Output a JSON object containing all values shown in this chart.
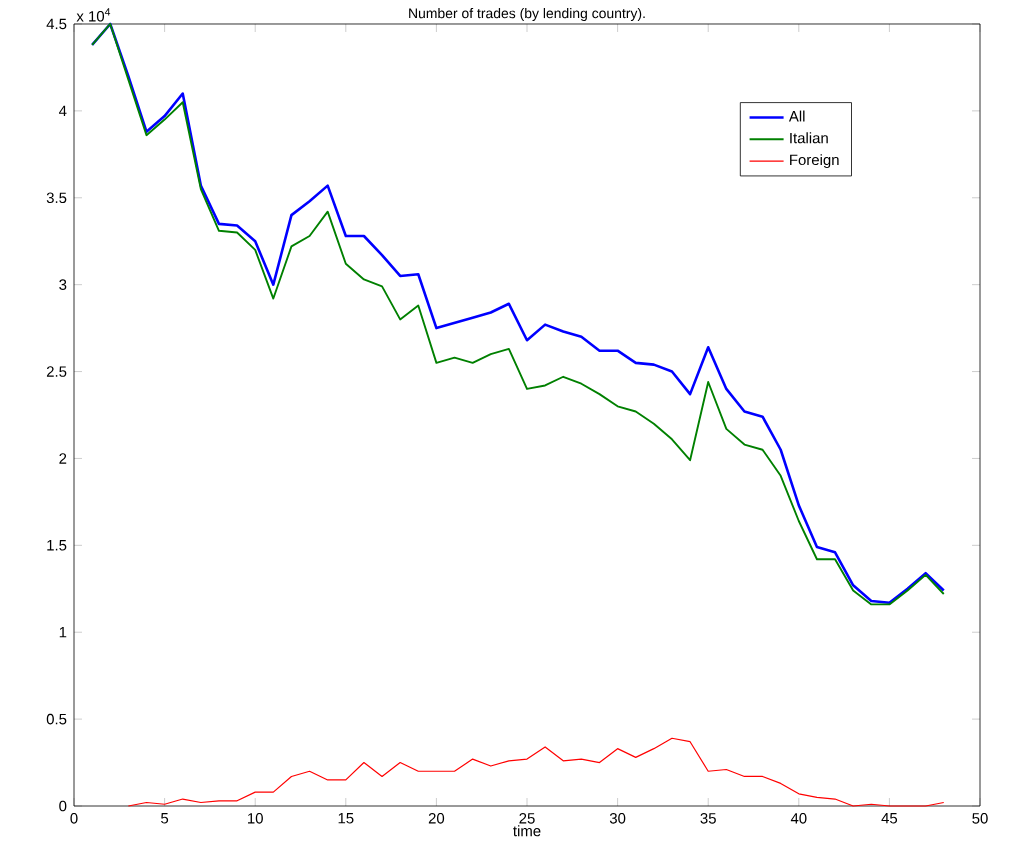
{
  "chart_data": {
    "type": "line",
    "title": "Number of trades (by lending country).",
    "xlabel": "time",
    "annotations": [
      "x 10$^{4}$"
    ],
    "x": [
      1,
      2,
      3,
      4,
      5,
      6,
      7,
      8,
      9,
      10,
      11,
      12,
      13,
      14,
      15,
      16,
      17,
      18,
      19,
      20,
      21,
      22,
      23,
      24,
      25,
      26,
      27,
      28,
      29,
      30,
      31,
      32,
      33,
      34,
      35,
      36,
      37,
      38,
      39,
      40,
      41,
      42,
      43,
      44,
      45,
      46,
      47,
      48
    ],
    "series": [
      {
        "name": "All",
        "color": "#0000ff",
        "values": [
          4.38,
          4.5,
          4.2,
          3.88,
          3.97,
          4.1,
          3.57,
          3.35,
          3.34,
          3.25,
          3.0,
          3.4,
          3.48,
          3.57,
          3.28,
          3.28,
          3.17,
          3.05,
          3.06,
          2.75,
          2.78,
          2.81,
          2.84,
          2.89,
          2.68,
          2.77,
          2.73,
          2.7,
          2.62,
          2.62,
          2.55,
          2.54,
          2.5,
          2.37,
          2.64,
          2.4,
          2.27,
          2.24,
          2.05,
          1.73,
          1.49,
          1.46,
          1.27,
          1.18,
          1.17,
          1.25,
          1.34,
          1.24
        ]
      },
      {
        "name": "Italian",
        "color": "#008000",
        "values": [
          4.38,
          4.5,
          4.18,
          3.86,
          3.95,
          4.05,
          3.55,
          3.31,
          3.3,
          3.2,
          2.92,
          3.22,
          3.28,
          3.42,
          3.12,
          3.03,
          2.99,
          2.8,
          2.88,
          2.55,
          2.58,
          2.55,
          2.6,
          2.63,
          2.4,
          2.42,
          2.47,
          2.43,
          2.37,
          2.3,
          2.27,
          2.2,
          2.11,
          1.99,
          2.44,
          2.17,
          2.08,
          2.05,
          1.9,
          1.64,
          1.42,
          1.42,
          1.24,
          1.16,
          1.16,
          1.24,
          1.33,
          1.22
        ]
      },
      {
        "name": "Foreign",
        "color": "#ff0000",
        "values": [
          null,
          null,
          0,
          0.02,
          0.01,
          0.04,
          0.02,
          0.03,
          0.03,
          0.08,
          0.08,
          0.17,
          0.2,
          0.15,
          0.15,
          0.25,
          0.17,
          0.25,
          0.2,
          0.2,
          0.2,
          0.27,
          0.23,
          0.26,
          0.27,
          0.34,
          0.26,
          0.27,
          0.25,
          0.33,
          0.28,
          0.33,
          0.39,
          0.37,
          0.2,
          0.21,
          0.17,
          0.17,
          0.13,
          0.07,
          0.05,
          0.04,
          0,
          0.01,
          0,
          null,
          0,
          0.02
        ]
      }
    ],
    "xlim": [
      0,
      50
    ],
    "xticks": [
      0,
      5,
      10,
      15,
      20,
      25,
      30,
      35,
      40,
      45,
      50
    ],
    "ylim": [
      0,
      4.5
    ],
    "yticks": [
      0,
      0.5,
      1,
      1.5,
      2,
      2.5,
      3,
      3.5,
      4,
      4.5
    ],
    "legend": "top right",
    "marker": "none",
    "grid": false
  }
}
